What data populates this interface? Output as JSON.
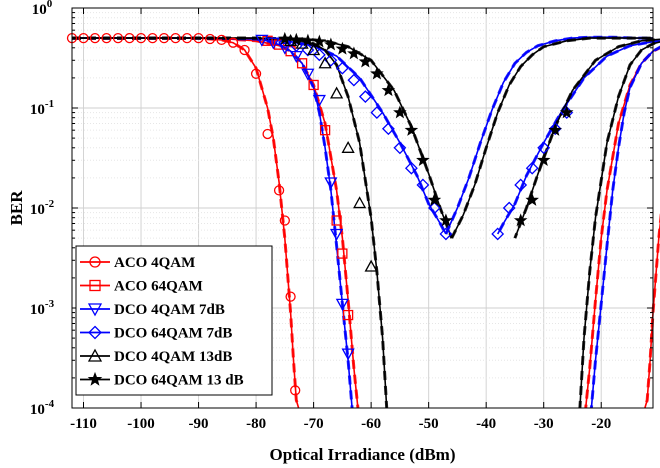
{
  "chart_data": {
    "type": "line",
    "xlabel": "Optical Irradiance (dBm)",
    "ylabel": "BER",
    "xlim": [
      -112,
      -11
    ],
    "ylim": [
      0.0001,
      1
    ],
    "yscale": "log",
    "grid": true,
    "legend_position": "bottom-left",
    "x_ticks": [
      -110,
      -100,
      -90,
      -80,
      -70,
      -60,
      -50,
      -40,
      -30,
      -20
    ],
    "x_tick_labels": [
      "-110",
      "-100",
      "-90",
      "-80",
      "-70",
      "-60",
      "-50",
      "-40",
      "-30",
      "-20"
    ],
    "y_ticks": [
      1,
      0.1,
      0.01,
      0.001,
      0.0001
    ],
    "y_tick_bases": [
      "10",
      "10",
      "10",
      "10",
      "10"
    ],
    "y_tick_exps": [
      "0",
      "-1",
      "-2",
      "-3",
      "-4"
    ],
    "series": [
      {
        "name": "ACO 4QAM",
        "color": "#ff0000",
        "marker": "circle",
        "x": [
          -112,
          -106,
          -100,
          -95,
          -90,
          -86,
          -84,
          -82,
          -80,
          -78,
          -77,
          -76,
          -75,
          -74,
          -73.5,
          -73,
          -72.6
        ],
        "y": [
          0.5,
          0.5,
          0.5,
          0.5,
          0.5,
          0.48,
          0.45,
          0.38,
          0.25,
          0.1,
          0.05,
          0.018,
          0.005,
          0.0009,
          0.0003,
          0.00012,
          0.0001
        ],
        "markers_x": [
          -112,
          -110,
          -108,
          -106,
          -104,
          -102,
          -100,
          -98,
          -96,
          -94,
          -92,
          -90,
          -88,
          -86,
          -84,
          -82,
          -80,
          -78,
          -76,
          -75,
          -74,
          -73.2
        ],
        "markers_y": [
          0.5,
          0.5,
          0.5,
          0.5,
          0.5,
          0.5,
          0.5,
          0.5,
          0.5,
          0.5,
          0.5,
          0.5,
          0.49,
          0.48,
          0.45,
          0.38,
          0.22,
          0.055,
          0.015,
          0.0075,
          0.0013,
          0.00015
        ]
      },
      {
        "name": "ACO 64QAM",
        "color": "#ff0000",
        "marker": "square",
        "x": [
          -112,
          -100,
          -90,
          -85,
          -80,
          -76,
          -74,
          -72,
          -70,
          -68,
          -66,
          -65,
          -64,
          -63,
          -62.3
        ],
        "y": [
          0.5,
          0.5,
          0.5,
          0.49,
          0.47,
          0.42,
          0.37,
          0.28,
          0.17,
          0.07,
          0.015,
          0.005,
          0.0012,
          0.00025,
          0.0001
        ],
        "markers_x": [
          -78,
          -76,
          -74,
          -72,
          -70,
          -68,
          -66,
          -65,
          -64
        ],
        "markers_y": [
          0.47,
          0.43,
          0.37,
          0.28,
          0.17,
          0.06,
          0.0075,
          0.0035,
          0.00085
        ]
      },
      {
        "name": "DCO 4QAM 7dB",
        "color": "#0000ff",
        "marker": "triangle-down",
        "x": [
          -112,
          -95,
          -85,
          -80,
          -78,
          -76,
          -74,
          -72,
          -70,
          -69,
          -68,
          -67,
          -66,
          -65,
          -64,
          -63.3
        ],
        "y": [
          0.5,
          0.5,
          0.5,
          0.49,
          0.47,
          0.43,
          0.37,
          0.28,
          0.16,
          0.09,
          0.04,
          0.015,
          0.0042,
          0.0011,
          0.0003,
          0.0001
        ],
        "markers_x": [
          -79,
          -77,
          -75,
          -73,
          -71,
          -69,
          -67,
          -66,
          -65,
          -64
        ],
        "markers_y": [
          0.48,
          0.45,
          0.4,
          0.33,
          0.22,
          0.12,
          0.018,
          0.0055,
          0.0011,
          0.00035
        ]
      },
      {
        "name": "DCO 64QAM 7dB",
        "color": "#0000ff",
        "marker": "diamond",
        "x": [
          -112,
          -90,
          -80,
          -74,
          -70,
          -66,
          -62,
          -58,
          -55,
          -52,
          -50,
          -48,
          -47
        ],
        "y": [
          0.5,
          0.5,
          0.49,
          0.46,
          0.42,
          0.33,
          0.2,
          0.09,
          0.045,
          0.021,
          0.011,
          0.007,
          0.0055
        ],
        "markers_x": [
          -75,
          -73,
          -71,
          -69,
          -67,
          -65,
          -63,
          -61,
          -59,
          -57,
          -55,
          -53,
          -51,
          -49,
          -47
        ],
        "markers_y": [
          0.45,
          0.42,
          0.38,
          0.34,
          0.3,
          0.25,
          0.19,
          0.13,
          0.09,
          0.062,
          0.04,
          0.025,
          0.017,
          0.01,
          0.0055
        ]
      },
      {
        "name": "DCO 4QAM 13dB",
        "color": "#000000",
        "marker": "triangle-up",
        "x": [
          -112,
          -90,
          -80,
          -76,
          -72,
          -70,
          -68,
          -66,
          -64,
          -62,
          -60,
          -59,
          -58,
          -57.3
        ],
        "y": [
          0.5,
          0.5,
          0.5,
          0.49,
          0.47,
          0.44,
          0.38,
          0.27,
          0.13,
          0.045,
          0.008,
          0.0023,
          0.0005,
          0.0001
        ],
        "markers_x": [
          -74,
          -72,
          -70,
          -68,
          -66,
          -64,
          -62,
          -60
        ],
        "markers_y": [
          0.47,
          0.44,
          0.38,
          0.28,
          0.14,
          0.04,
          0.0112,
          0.0026
        ]
      },
      {
        "name": "DCO 64QAM 13 dB",
        "color": "#000000",
        "marker": "star",
        "x": [
          -112,
          -90,
          -80,
          -72,
          -68,
          -64,
          -60,
          -56,
          -53,
          -50,
          -48,
          -46
        ],
        "y": [
          0.5,
          0.5,
          0.5,
          0.49,
          0.47,
          0.41,
          0.3,
          0.15,
          0.065,
          0.022,
          0.01,
          0.005
        ],
        "markers_x": [
          -75,
          -73,
          -71,
          -69,
          -67,
          -65,
          -63,
          -61,
          -59,
          -57,
          -55,
          -53,
          -51,
          -49,
          -47
        ],
        "markers_y": [
          0.49,
          0.48,
          0.47,
          0.46,
          0.43,
          0.39,
          0.35,
          0.29,
          0.22,
          0.15,
          0.09,
          0.06,
          0.03,
          0.012,
          0.0075
        ]
      },
      {
        "name": "",
        "color": "#0000ff",
        "marker": "none",
        "x": [
          -47,
          -45,
          -43,
          -41,
          -39,
          -37,
          -35,
          -33,
          -31,
          -28,
          -25,
          -22,
          -18,
          -14,
          -11
        ],
        "y": [
          0.0055,
          0.01,
          0.02,
          0.045,
          0.095,
          0.18,
          0.28,
          0.36,
          0.42,
          0.47,
          0.5,
          0.51,
          0.51,
          0.5,
          0.5
        ],
        "markers_x": [],
        "markers_y": []
      },
      {
        "name": "",
        "color": "#000000",
        "marker": "none",
        "x": [
          -46,
          -44,
          -42,
          -40,
          -38,
          -36,
          -34,
          -32,
          -30,
          -26,
          -22,
          -18,
          -14,
          -11
        ],
        "y": [
          0.005,
          0.0085,
          0.017,
          0.04,
          0.09,
          0.17,
          0.26,
          0.34,
          0.41,
          0.47,
          0.5,
          0.5,
          0.5,
          0.5
        ],
        "markers_x": [
          -46
        ],
        "markers_y": [
          0.005
        ]
      }
    ]
  }
}
